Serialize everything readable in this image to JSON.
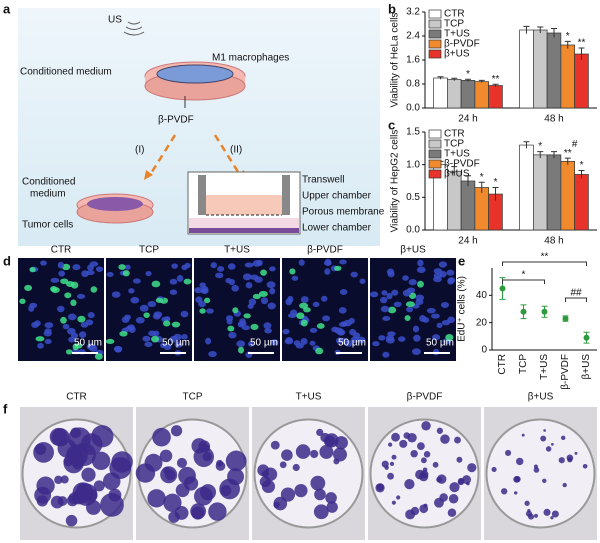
{
  "panel_letters": [
    "a",
    "b",
    "c",
    "d",
    "e",
    "f"
  ],
  "schematic": {
    "us": "US",
    "macrophages": "M1 macrophages",
    "conditioned_medium": "Conditioned medium",
    "scaffold": "β-PVDF",
    "route_1": "(I)",
    "route_2": "(II)",
    "conditioned_medium_2": [
      "Conditioned",
      "medium"
    ],
    "tumor_cells": "Tumor cells",
    "transwell": "Transwell",
    "upper_chamber": "Upper chamber",
    "porous_membrane": "Porous membrane",
    "lower_chamber": "Lower chamber"
  },
  "chart_data": [
    {
      "type": "bar",
      "ylabel": "Viability of HeLa cells",
      "categories": [
        "24 h",
        "48 h"
      ],
      "legend": "top-left",
      "ylim": [
        0,
        3.2
      ],
      "yticks": [
        {
          "value": 0,
          "label": "0.0"
        },
        0.8,
        1.6,
        2.4,
        3.2
      ],
      "series": [
        {
          "name": "CTR",
          "color": "#ffffff",
          "values": [
            1.0,
            2.6
          ],
          "errors": [
            0.04,
            0.12
          ],
          "sig": [
            null,
            null
          ]
        },
        {
          "name": "TCP",
          "color": "#c8c8c8",
          "values": [
            0.95,
            2.6
          ],
          "errors": [
            0.04,
            0.1
          ],
          "sig": [
            null,
            null
          ]
        },
        {
          "name": "T+US",
          "color": "#7a7a7a",
          "values": [
            0.92,
            2.5
          ],
          "errors": [
            0.04,
            0.15
          ],
          "sig": [
            "*",
            null
          ]
        },
        {
          "name": "β-PVDF",
          "color": "#f08a2c",
          "values": [
            0.88,
            2.1
          ],
          "errors": [
            0.04,
            0.12
          ],
          "sig": [
            null,
            "*"
          ]
        },
        {
          "name": "β+US",
          "color": "#e8332a",
          "values": [
            0.75,
            1.8
          ],
          "errors": [
            0.04,
            0.2
          ],
          "sig": [
            "**",
            "**"
          ]
        }
      ]
    },
    {
      "type": "bar",
      "ylabel": "Viability of HepG2 cells",
      "categories": [
        "24 h",
        "48 h"
      ],
      "legend": "top-left",
      "ylim": [
        0,
        1.5
      ],
      "yticks": [
        {
          "value": 0,
          "label": "0.0"
        },
        0.5,
        {
          "value": 1,
          "label": "1.0"
        },
        1.5
      ],
      "series": [
        {
          "name": "CTR",
          "color": "#ffffff",
          "values": [
            1.0,
            1.3
          ],
          "errors": [
            0.05,
            0.05
          ],
          "sig": [
            null,
            null
          ]
        },
        {
          "name": "TCP",
          "color": "#c8c8c8",
          "values": [
            0.9,
            1.15
          ],
          "errors": [
            0.07,
            0.05
          ],
          "sig": [
            null,
            "*"
          ]
        },
        {
          "name": "T+US",
          "color": "#7a7a7a",
          "values": [
            0.75,
            1.15
          ],
          "errors": [
            0.08,
            0.05
          ],
          "sig": [
            null,
            null
          ]
        },
        {
          "name": "β-PVDF",
          "color": "#f08a2c",
          "values": [
            0.65,
            1.05
          ],
          "errors": [
            0.08,
            0.05
          ],
          "sig": [
            "*",
            "**"
          ],
          "sig2": [
            null,
            "#"
          ]
        },
        {
          "name": "β+US",
          "color": "#e8332a",
          "values": [
            0.55,
            0.85
          ],
          "errors": [
            0.1,
            0.06
          ],
          "sig": [
            "*",
            "*"
          ]
        }
      ]
    },
    {
      "type": "point",
      "ylabel": "EdU⁺ cells (%)",
      "categories": [
        "CTR",
        "TCP",
        "T+US",
        "β-PVDF",
        "β+US"
      ],
      "values": [
        45,
        28,
        28,
        23,
        9
      ],
      "errors": [
        8,
        5,
        4,
        2,
        4
      ],
      "color": "#2e9a3e",
      "ylim": [
        0,
        60
      ],
      "yticks": [
        0,
        20,
        40
      ],
      "brackets": [
        {
          "text": "**",
          "from": 0,
          "to": 4
        },
        {
          "text": "*",
          "from": 0,
          "to": 2
        },
        {
          "text": "##",
          "from": 3,
          "to": 4
        }
      ]
    }
  ],
  "fluorescence": {
    "labels": [
      "CTR",
      "TCP",
      "T+US",
      "β-PVDF",
      "β+US"
    ],
    "scale_bar": "50 µm"
  },
  "colony": {
    "labels": [
      "CTR",
      "TCP",
      "T+US",
      "β-PVDF",
      "β+US"
    ]
  }
}
